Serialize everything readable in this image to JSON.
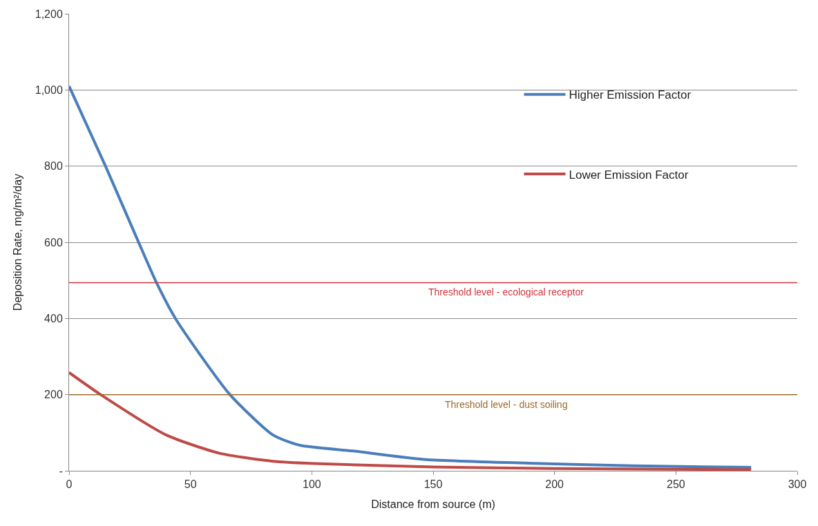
{
  "chart_data": {
    "type": "line",
    "xlabel": "Distance from source (m)",
    "ylabel": "Deposition Rate, mg/m²/day",
    "xlim": [
      0,
      300
    ],
    "xticks": [
      0,
      50,
      100,
      150,
      200,
      250,
      300
    ],
    "ylim": [
      0,
      1200
    ],
    "yticks": [
      {
        "value": 0,
        "label": "-"
      },
      200,
      400,
      600,
      800,
      {
        "value": 1000,
        "label": "1,000"
      },
      {
        "value": 1200,
        "label": "1,200"
      }
    ],
    "grid": "y",
    "legend": "right",
    "marker": "none",
    "line_style": "solid",
    "series": [
      {
        "name": "Higher Emission Factor",
        "color": "#4a7ebb",
        "x": [
          0,
          15,
          28.5,
          36,
          44,
          66,
          84,
          95,
          117,
          146,
          189,
          232,
          281
        ],
        "values": [
          1010,
          800,
          602,
          494,
          398,
          202,
          94,
          67,
          52,
          30,
          20,
          13,
          9
        ]
      },
      {
        "name": "Lower Emission Factor",
        "color": "#be4b48",
        "x": [
          0,
          13,
          40,
          62,
          84,
          101,
          150,
          200,
          281
        ],
        "values": [
          258,
          200,
          94,
          46,
          25,
          19,
          10,
          6,
          3
        ]
      }
    ],
    "ref_lines": [
      {
        "axis": "y",
        "value": 494,
        "label": "Threshold level - ecological receptor",
        "color": "#d0343c"
      },
      {
        "axis": "y",
        "value": 200,
        "label": "Threshold level - dust soiling",
        "color": "#9c6a2c"
      }
    ]
  }
}
